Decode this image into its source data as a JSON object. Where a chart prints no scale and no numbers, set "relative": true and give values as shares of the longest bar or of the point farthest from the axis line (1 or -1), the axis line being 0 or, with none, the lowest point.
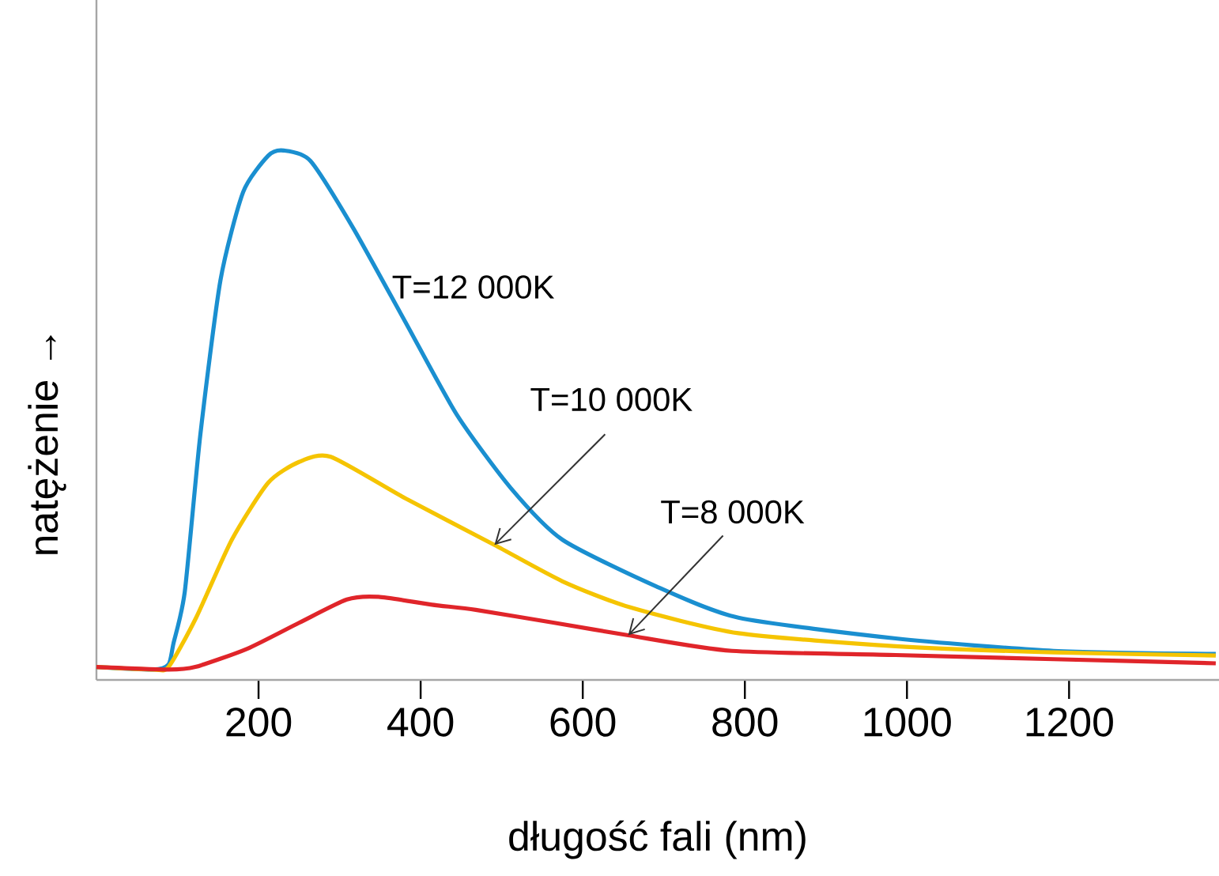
{
  "chart_data": {
    "type": "line",
    "relative": true,
    "xlabel": "długość fali (nm)",
    "ylabel": "natężenie →",
    "xlim": [
      0,
      1385
    ],
    "xticks": [
      200,
      400,
      600,
      800,
      1000,
      1200
    ],
    "series": [
      {
        "name": "T=12 000K",
        "color": "#1a8fd0",
        "x": [
          0,
          70,
          89,
          95,
          109,
          128,
          153,
          181,
          212,
          231,
          264,
          317,
          381,
          445,
          511,
          575,
          691,
          792,
          986,
          1181,
          1381
        ],
        "values": [
          0.005,
          0,
          0.01,
          0.05,
          0.15,
          0.45,
          0.75,
          0.92,
          0.99,
          1.0,
          0.98,
          0.85,
          0.67,
          0.49,
          0.35,
          0.25,
          0.16,
          0.1,
          0.06,
          0.036,
          0.03
        ]
      },
      {
        "name": "T=10 000K",
        "color": "#f5c400",
        "x": [
          0,
          70,
          89,
          123,
          167,
          212,
          250,
          289,
          381,
          491,
          575,
          658,
          792,
          986,
          1181,
          1381
        ],
        "values": [
          0.005,
          0,
          0.005,
          0.1,
          0.25,
          0.36,
          0.4,
          0.41,
          0.33,
          0.24,
          0.17,
          0.12,
          0.07,
          0.045,
          0.033,
          0.027
        ]
      },
      {
        "name": "T=8 000K",
        "color": "#e0252a",
        "x": [
          0,
          89,
          122,
          186,
          250,
          309,
          348,
          414,
          468,
          565,
          656,
          784,
          986,
          1181,
          1381
        ],
        "values": [
          0.005,
          0,
          0.005,
          0.04,
          0.09,
          0.135,
          0.14,
          0.125,
          0.115,
          0.09,
          0.066,
          0.036,
          0.028,
          0.02,
          0.012
        ]
      }
    ]
  }
}
